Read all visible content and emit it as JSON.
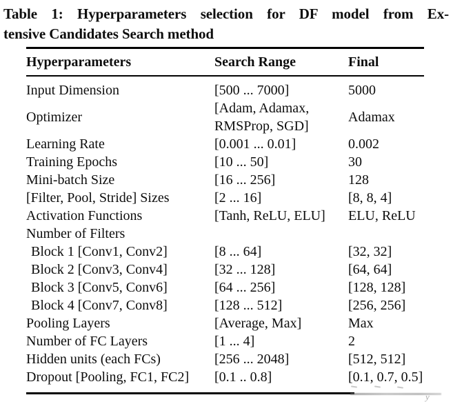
{
  "title": {
    "full": "Table 1: Hyperparameters selection for DF model from Extensive Candidates Search method",
    "line1": "Table 1: Hyperparameters selection for DF model from Ex-",
    "line2": "tensive Candidates Search method"
  },
  "table": {
    "headers": {
      "hyperparameters": "Hyperparameters",
      "search_range": "Search Range",
      "final": "Final"
    },
    "rows": [
      {
        "param": "Input Dimension",
        "range": "[500 ... 7000]",
        "final": "5000"
      },
      {
        "param": "Optimizer",
        "range": "[Adam, Adamax,\nRMSProp, SGD]",
        "final": "Adamax"
      },
      {
        "param": "Learning Rate",
        "range": "[0.001 ... 0.01]",
        "final": "0.002"
      },
      {
        "param": "Training Epochs",
        "range": "[10 ... 50]",
        "final": "30"
      },
      {
        "param": "Mini-batch Size",
        "range": "[16 ... 256]",
        "final": "128"
      },
      {
        "param": "[Filter, Pool, Stride] Sizes",
        "range": "[2 ... 16]",
        "final": "[8, 8, 4]"
      },
      {
        "param": "Activation Functions",
        "range": "[Tanh, ReLU, ELU]",
        "final": "ELU, ReLU"
      },
      {
        "param": "Number of Filters",
        "range": "",
        "final": ""
      },
      {
        "param": "Block 1 [Conv1, Conv2]",
        "range": "[8 ... 64]",
        "final": "[32, 32]"
      },
      {
        "param": "Block 2 [Conv3, Conv4]",
        "range": "[32 ... 128]",
        "final": "[64, 64]"
      },
      {
        "param": "Block 3 [Conv5, Conv6]",
        "range": "[64 ... 256]",
        "final": "[128, 128]"
      },
      {
        "param": "Block 4 [Conv7, Conv8]",
        "range": "[128 ... 512]",
        "final": "[256, 256]"
      },
      {
        "param": "Pooling Layers",
        "range": "[Average, Max]",
        "final": "Max"
      },
      {
        "param": "Number of FC Layers",
        "range": "[1 ... 4]",
        "final": "2"
      },
      {
        "param": "Hidden units (each FCs)",
        "range": "[256 ... 2048]",
        "final": "[512, 512]"
      },
      {
        "param": "Dropout [Pooling, FC1, FC2]",
        "range": "[0.1 .. 0.8]",
        "final": "[0.1, 0.7, 0.5]"
      }
    ]
  },
  "artifact": {
    "tail_glyph": "y"
  },
  "colors": {
    "text": "#0d0d0d",
    "rule": "#000000",
    "background": "#ffffff",
    "artifact_gray": "#9a9a9a"
  }
}
